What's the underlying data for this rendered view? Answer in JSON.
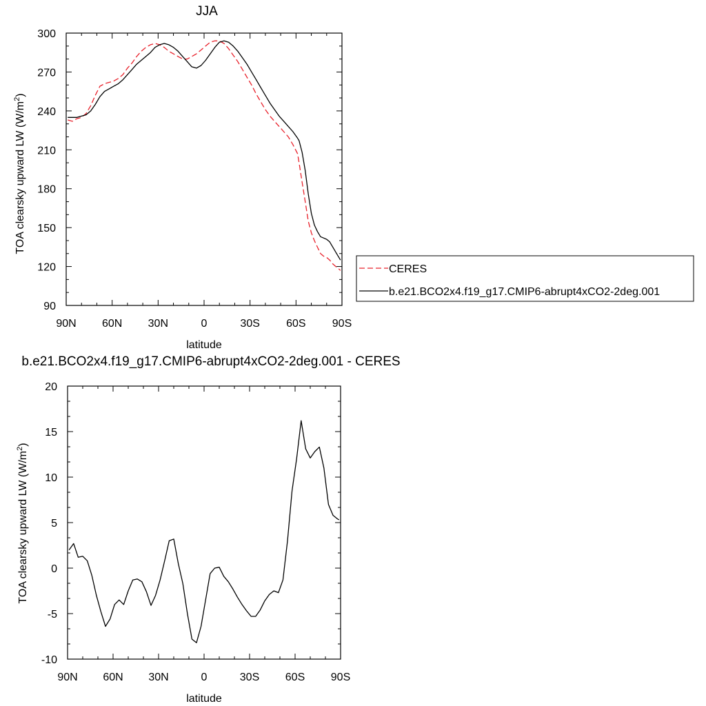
{
  "chart_data": [
    {
      "type": "line",
      "title": "JJA",
      "xlabel": "latitude",
      "ylabel": "TOA clearsky upward LW (W/m²)",
      "ylabel_main": "TOA clearsky upward LW (W/m",
      "ylabel_sup": "2",
      "ylabel_close": ")",
      "xlim": [
        90,
        -90
      ],
      "ylim": [
        90,
        300
      ],
      "x_ticks": [
        90,
        60,
        30,
        0,
        -30,
        -60,
        -90
      ],
      "x_tick_labels": [
        "90N",
        "60N",
        "30N",
        "0",
        "30S",
        "60S",
        "90S"
      ],
      "y_ticks": [
        90,
        120,
        150,
        180,
        210,
        240,
        270,
        300
      ],
      "y_tick_labels": [
        "90",
        "120",
        "150",
        "180",
        "210",
        "240",
        "270",
        "300"
      ],
      "legend_position": "right",
      "series": [
        {
          "name": "CERES",
          "color": "#e8202a",
          "dash": "dashed",
          "x": [
            89,
            86,
            83,
            80,
            77,
            74,
            71,
            68,
            65,
            62,
            59,
            56,
            53,
            50,
            47,
            44,
            41,
            38,
            35,
            32,
            29,
            26,
            23,
            20,
            17,
            14,
            11,
            8,
            5,
            2,
            -1,
            -4,
            -7,
            -10,
            -13,
            -16,
            -19,
            -22,
            -25,
            -28,
            -31,
            -34,
            -37,
            -40,
            -43,
            -46,
            -49,
            -52,
            -55,
            -58,
            -61,
            -62,
            -64,
            -66,
            -68,
            -70,
            -72,
            -74,
            -76,
            -78,
            -80,
            -82,
            -84,
            -86,
            -88,
            -89
          ],
          "y": [
            233,
            232,
            234,
            235,
            238,
            244,
            252,
            259,
            261,
            262,
            263,
            265,
            268,
            273,
            277,
            282,
            286,
            289,
            291,
            292,
            291,
            289,
            286,
            284,
            282,
            280,
            280,
            282,
            284,
            287,
            290,
            293,
            294,
            294,
            292,
            288,
            283,
            278,
            272,
            266,
            260,
            253,
            247,
            241,
            236,
            232,
            228,
            224,
            220,
            214,
            207,
            200,
            185,
            170,
            155,
            146,
            140,
            135,
            130,
            128,
            127,
            125,
            122,
            120,
            118,
            117
          ]
        },
        {
          "name": "b.e21.BCO2x4.f19_g17.CMIP6-abrupt4xCO2-2deg.001",
          "color": "#000000",
          "dash": "solid",
          "x": [
            89,
            86,
            83,
            80,
            77,
            74,
            71,
            68,
            65,
            62,
            59,
            56,
            53,
            50,
            47,
            44,
            41,
            38,
            35,
            32,
            29,
            26,
            23,
            20,
            17,
            14,
            11,
            8,
            5,
            2,
            -1,
            -4,
            -7,
            -10,
            -13,
            -16,
            -19,
            -22,
            -25,
            -28,
            -31,
            -34,
            -37,
            -40,
            -43,
            -46,
            -49,
            -52,
            -55,
            -58,
            -61,
            -62,
            -64,
            -66,
            -68,
            -70,
            -72,
            -74,
            -76,
            -78,
            -80,
            -82,
            -84,
            -86,
            -88,
            -89
          ],
          "y": [
            235,
            235,
            235,
            236,
            237,
            240,
            245,
            251,
            255,
            257,
            259,
            261,
            264,
            268,
            272,
            276,
            279,
            282,
            285,
            289,
            291,
            292,
            291,
            289,
            286,
            282,
            278,
            274,
            273,
            275,
            279,
            284,
            289,
            293,
            294,
            293,
            290,
            286,
            281,
            276,
            270,
            264,
            258,
            252,
            246,
            241,
            236,
            232,
            228,
            224,
            219,
            217,
            208,
            194,
            176,
            161,
            152,
            147,
            143,
            142,
            141,
            139,
            135,
            131,
            127,
            125
          ]
        }
      ]
    },
    {
      "type": "line",
      "title": "b.e21.BCO2x4.f19_g17.CMIP6-abrupt4xCO2-2deg.001 - CERES",
      "xlabel": "latitude",
      "ylabel": "TOA clearsky upward LW (W/m²)",
      "ylabel_main": "TOA clearsky upward LW (W/m",
      "ylabel_sup": "2",
      "ylabel_close": ")",
      "xlim": [
        90,
        -90
      ],
      "ylim": [
        -10,
        20
      ],
      "x_ticks": [
        90,
        60,
        30,
        0,
        -30,
        -60,
        -90
      ],
      "x_tick_labels": [
        "90N",
        "60N",
        "30N",
        "0",
        "30S",
        "60S",
        "90S"
      ],
      "y_ticks": [
        -10,
        -5,
        0,
        5,
        10,
        15,
        20
      ],
      "y_tick_labels": [
        "-10",
        "-5",
        "0",
        "5",
        "10",
        "15",
        "20"
      ],
      "series": [
        {
          "color": "#000000",
          "dash": "solid",
          "x": [
            89,
            86,
            83,
            80,
            77,
            74,
            71,
            68,
            65,
            62,
            59,
            56,
            53,
            50,
            47,
            44,
            41,
            38,
            35,
            32,
            29,
            26,
            23,
            20,
            17,
            14,
            11,
            8,
            5,
            2,
            -1,
            -4,
            -7,
            -10,
            -13,
            -16,
            -19,
            -22,
            -25,
            -28,
            -31,
            -34,
            -37,
            -40,
            -43,
            -46,
            -49,
            -52,
            -55,
            -58,
            -61,
            -64,
            -67,
            -70,
            -73,
            -76,
            -79,
            -82,
            -85,
            -88,
            -89
          ],
          "y": [
            2.0,
            2.7,
            1.2,
            1.3,
            0.8,
            -0.8,
            -3.0,
            -4.8,
            -6.4,
            -5.6,
            -4.0,
            -3.5,
            -4.0,
            -2.5,
            -1.3,
            -1.2,
            -1.5,
            -2.6,
            -4.1,
            -3.0,
            -1.3,
            0.8,
            3.0,
            3.2,
            0.5,
            -1.7,
            -5.0,
            -7.8,
            -8.2,
            -6.4,
            -3.5,
            -0.6,
            0.0,
            0.1,
            -0.9,
            -1.5,
            -2.3,
            -3.2,
            -4.0,
            -4.7,
            -5.3,
            -5.3,
            -4.6,
            -3.6,
            -2.9,
            -2.5,
            -2.7,
            -1.3,
            3.0,
            8.5,
            12.0,
            16.2,
            13.1,
            12.1,
            12.8,
            13.3,
            11.0,
            7.0,
            5.8,
            5.4,
            5.3
          ]
        }
      ]
    }
  ]
}
